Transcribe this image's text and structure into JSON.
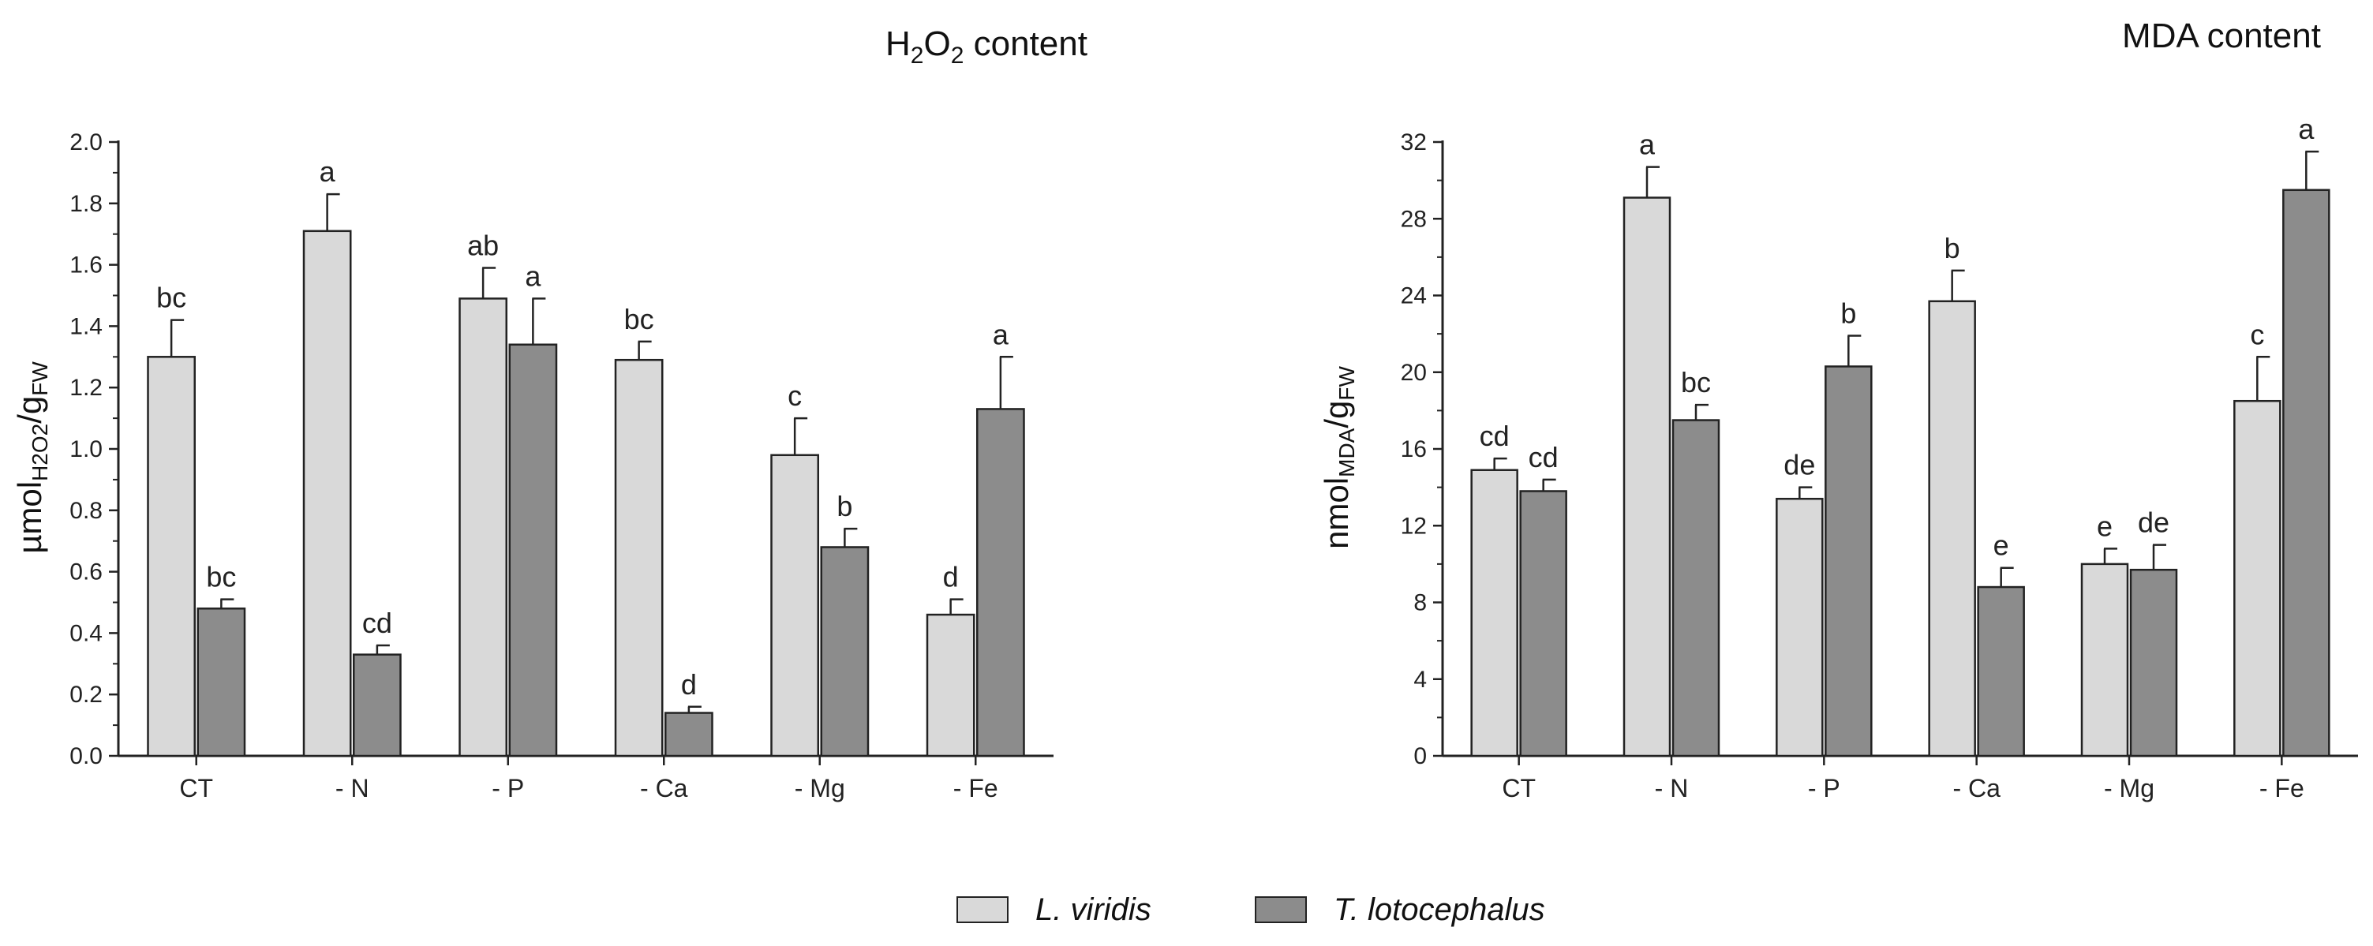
{
  "colors": {
    "series1": "#d9d9d9",
    "series2": "#8c8c8c",
    "axis": "#222222",
    "error": "#222222"
  },
  "legend": {
    "series1": "L. viridis",
    "series2": "T. lotocephalus"
  },
  "chart_data": [
    {
      "type": "bar",
      "title_main": "H",
      "title_sub1": "2",
      "title_mid": "O",
      "title_sub2": "2",
      "title_tail": " content",
      "ylabel_main": "µmol",
      "ylabel_sub": "H2O2",
      "ylabel_mid": "/g",
      "ylabel_sub2": "FW",
      "categories": [
        "CT",
        "- N",
        "- P",
        "- Ca",
        "- Mg",
        "- Fe"
      ],
      "ylim": [
        0,
        2.0
      ],
      "yticks": [
        "0.0",
        "0.2",
        "0.4",
        "0.6",
        "0.8",
        "1.0",
        "1.2",
        "1.4",
        "1.6",
        "1.8",
        "2.0"
      ],
      "series": [
        {
          "name": "L. viridis",
          "values": [
            1.3,
            1.71,
            1.49,
            1.29,
            0.98,
            0.46
          ],
          "errors": [
            0.12,
            0.12,
            0.1,
            0.06,
            0.12,
            0.05
          ],
          "letters": [
            "bc",
            "a",
            "ab",
            "bc",
            "c",
            "d"
          ]
        },
        {
          "name": "T. lotocephalus",
          "values": [
            0.48,
            0.33,
            1.34,
            0.14,
            0.68,
            1.13
          ],
          "errors": [
            0.03,
            0.03,
            0.15,
            0.02,
            0.06,
            0.17
          ],
          "letters": [
            "bc",
            "cd",
            "a",
            "d",
            "b",
            "a"
          ]
        }
      ]
    },
    {
      "type": "bar",
      "title_main": "MDA content",
      "ylabel_main": "nmol",
      "ylabel_sub": "MDA",
      "ylabel_mid": "/g",
      "ylabel_sub2": "FW",
      "categories": [
        "CT",
        "- N",
        "- P",
        "- Ca",
        "- Mg",
        "- Fe"
      ],
      "ylim": [
        0,
        32
      ],
      "yticks": [
        "0",
        "4",
        "8",
        "12",
        "16",
        "20",
        "24",
        "28",
        "32"
      ],
      "series": [
        {
          "name": "L. viridis",
          "values": [
            14.9,
            29.1,
            13.4,
            23.7,
            10.0,
            18.5
          ],
          "errors": [
            0.6,
            1.6,
            0.6,
            1.6,
            0.8,
            2.3
          ],
          "letters": [
            "cd",
            "a",
            "de",
            "b",
            "e",
            "c"
          ]
        },
        {
          "name": "T. lotocephalus",
          "values": [
            13.8,
            17.5,
            20.3,
            8.8,
            9.7,
            29.5
          ],
          "errors": [
            0.6,
            0.8,
            1.6,
            1.0,
            1.3,
            2.0
          ],
          "letters": [
            "cd",
            "bc",
            "b",
            "e",
            "de",
            "a"
          ]
        }
      ]
    }
  ]
}
